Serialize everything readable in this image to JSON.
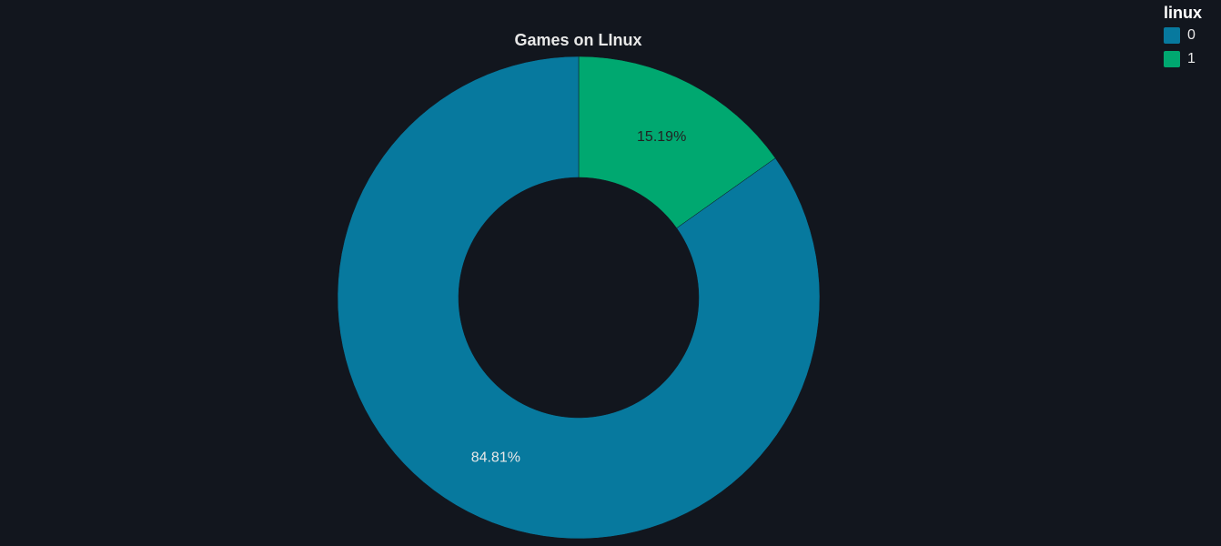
{
  "chart_data": {
    "type": "pie",
    "donut": true,
    "title": "Games on LInux",
    "legend": {
      "title": "linux",
      "placement": "top-right"
    },
    "categories": [
      "0",
      "1"
    ],
    "values": [
      84.81,
      15.19
    ],
    "labels": [
      "84.81%",
      "15.19%"
    ],
    "colors": [
      "#07799e",
      "#00a870"
    ],
    "label_colors": [
      "#e8e8e8",
      "#222222"
    ]
  }
}
